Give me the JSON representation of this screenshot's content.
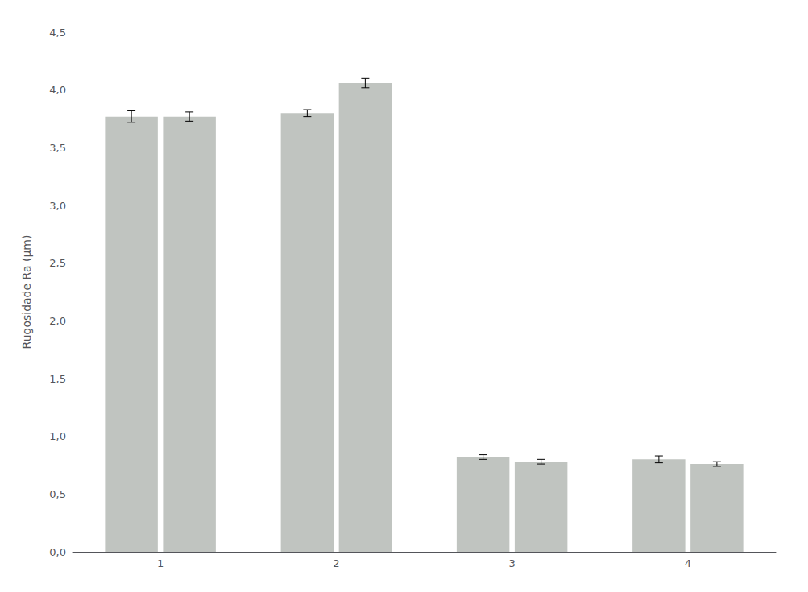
{
  "chart_data": {
    "type": "bar",
    "ylabel": "Rugosidade Ra (μm)",
    "categories": [
      "1",
      "2",
      "3",
      "4"
    ],
    "series": [
      {
        "color": "#c0c4c0",
        "values": [
          3.77,
          3.8,
          0.82,
          0.8
        ],
        "errors": [
          0.05,
          0.03,
          0.02,
          0.03
        ]
      },
      {
        "color": "#c0c4c0",
        "values": [
          3.77,
          4.06,
          0.78,
          0.76
        ],
        "errors": [
          0.04,
          0.04,
          0.02,
          0.02
        ]
      }
    ],
    "ylim": [
      0,
      4.5
    ],
    "yticks": [
      {
        "value": 0.0,
        "label": "0,0"
      },
      {
        "value": 0.5,
        "label": "0,5"
      },
      {
        "value": 1.0,
        "label": "1,0"
      },
      {
        "value": 1.5,
        "label": "1,5"
      },
      {
        "value": 2.0,
        "label": "2,0"
      },
      {
        "value": 2.5,
        "label": "2,5"
      },
      {
        "value": 3.0,
        "label": "3,0"
      },
      {
        "value": 3.5,
        "label": "3,5"
      },
      {
        "value": 4.0,
        "label": "4,0"
      },
      {
        "value": 4.5,
        "label": "4,5"
      }
    ],
    "grid": false
  }
}
